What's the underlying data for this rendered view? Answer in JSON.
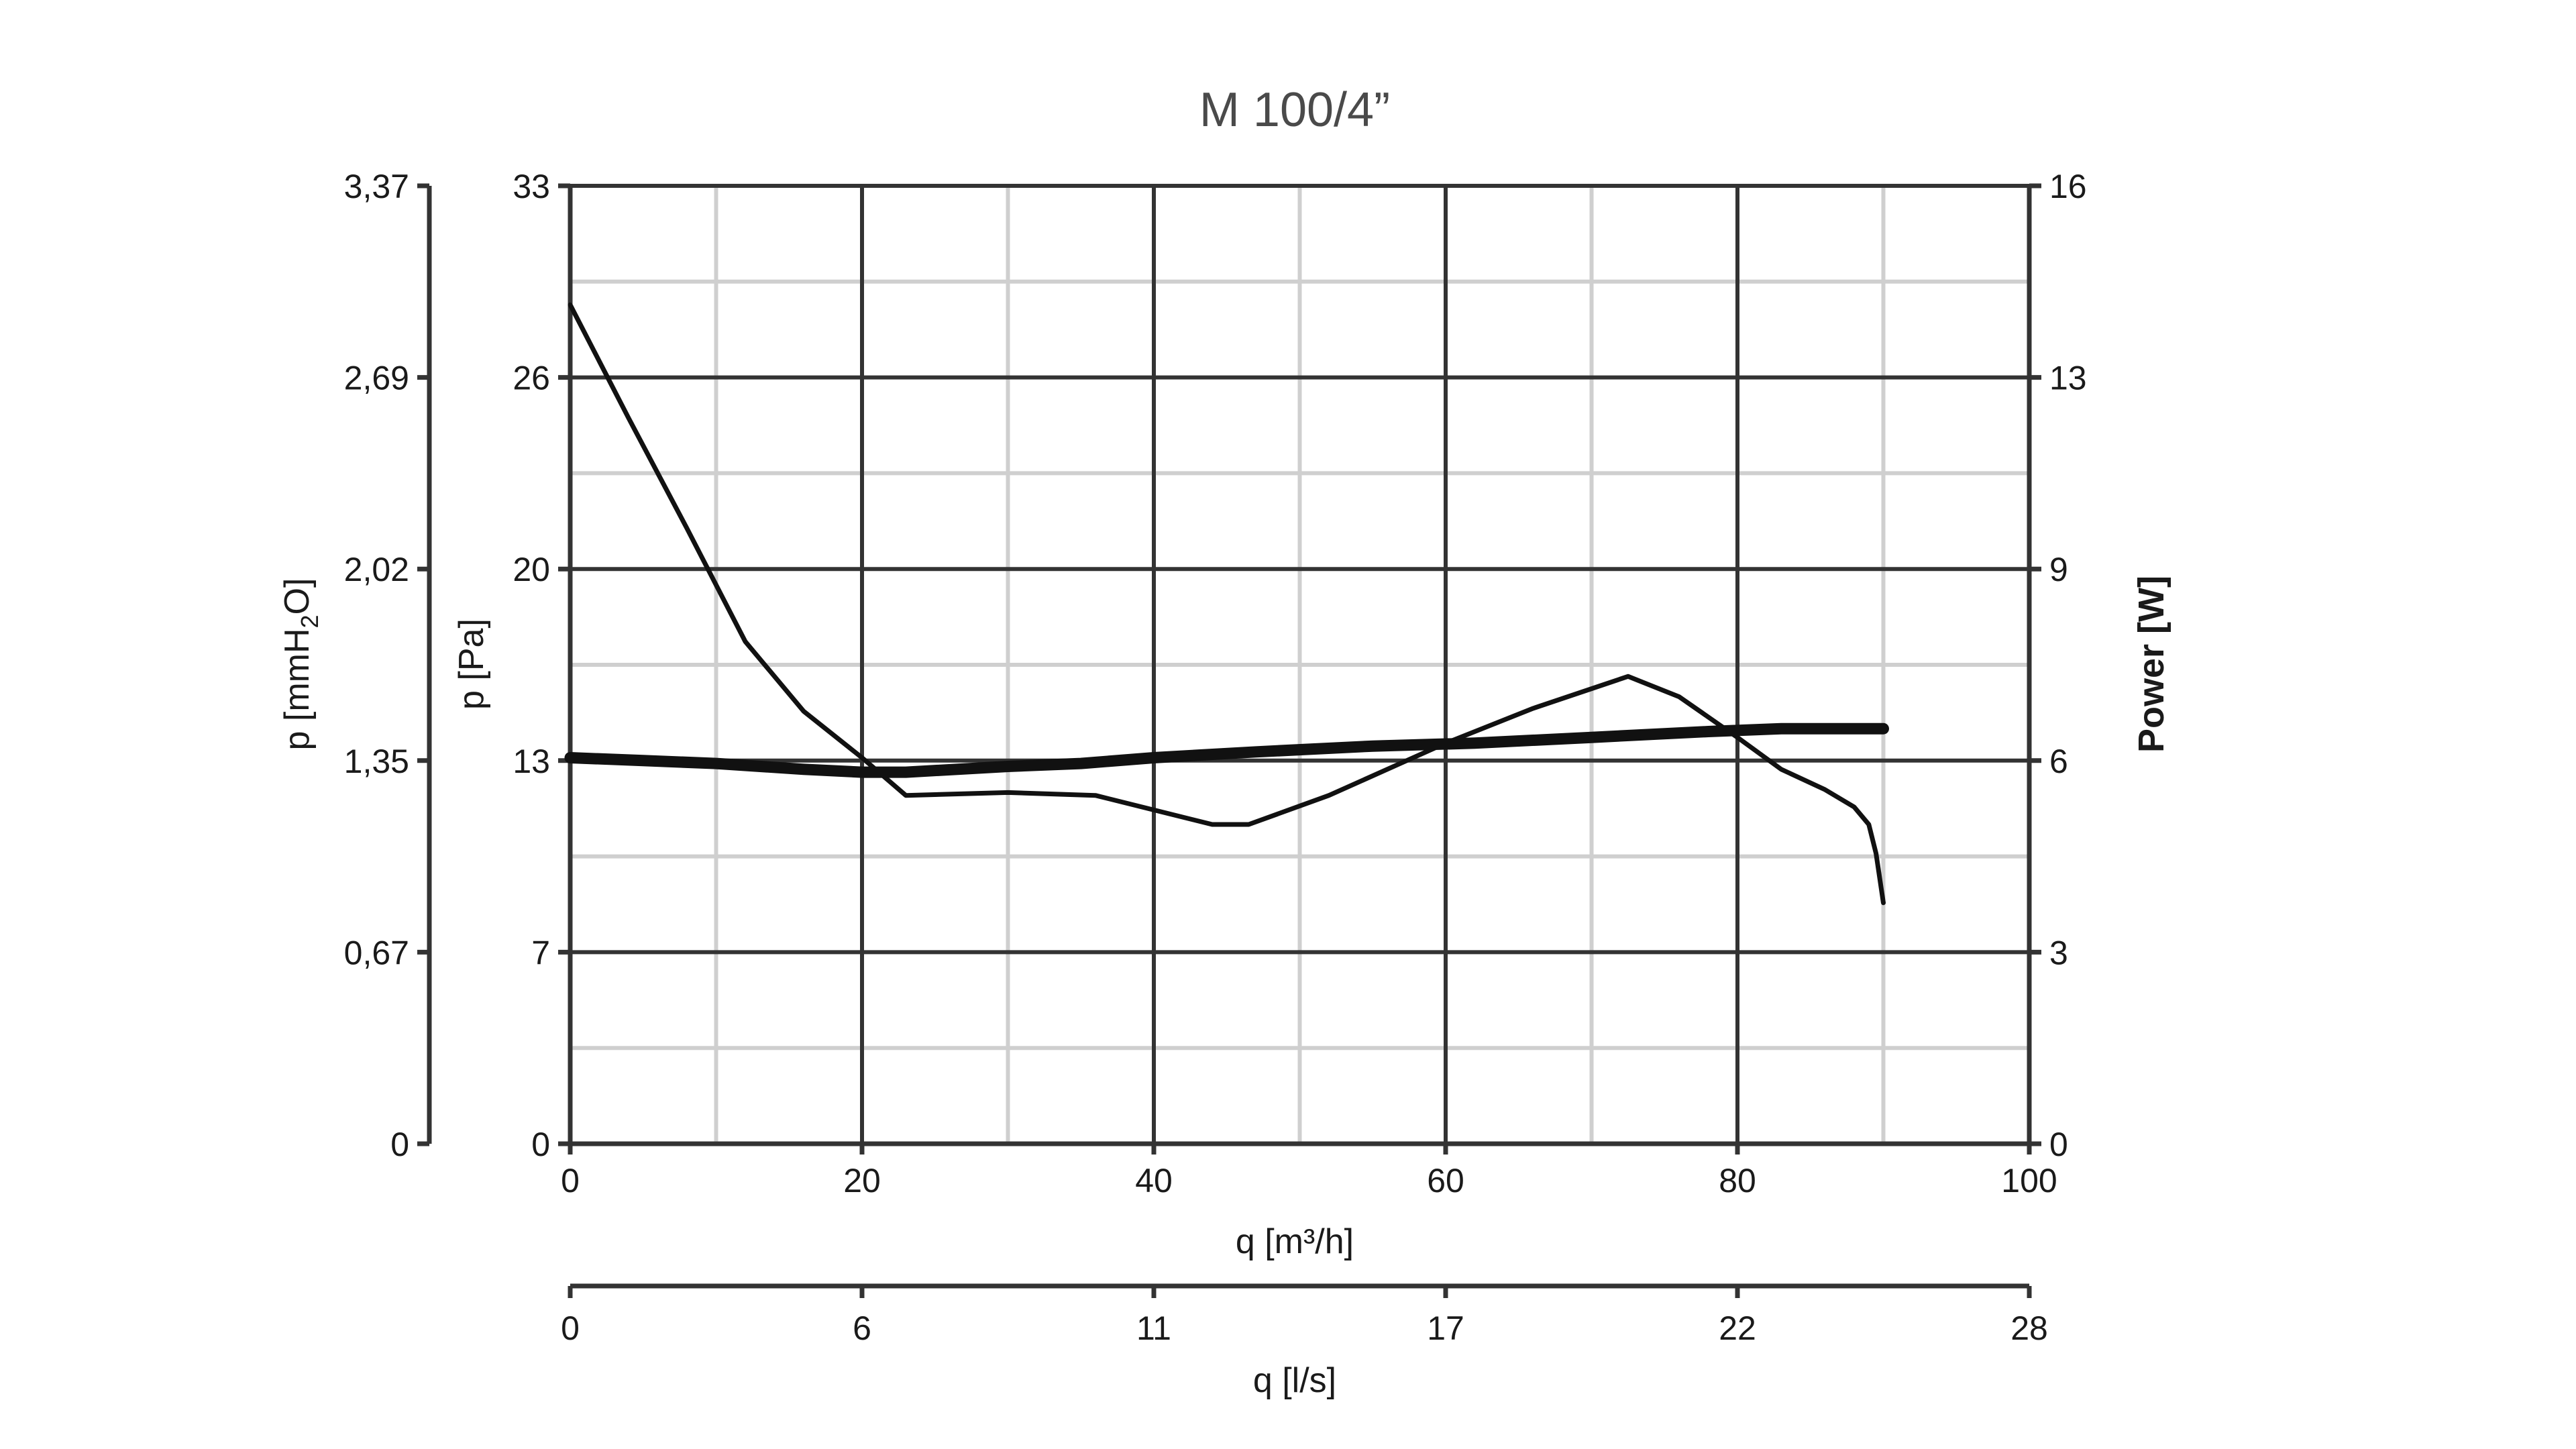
{
  "chart_data": {
    "type": "line",
    "title": "M 100/4”",
    "x_axis_primary": {
      "label": "q [m³/h]",
      "ticks": [
        "0",
        "20",
        "40",
        "60",
        "80",
        "100"
      ],
      "range": [
        0,
        100
      ]
    },
    "x_axis_secondary": {
      "label": "q [l/s]",
      "ticks": [
        "0",
        "6",
        "11",
        "17",
        "22",
        "28"
      ]
    },
    "y_axis_left_pa": {
      "label": "p [Pa]",
      "ticks": [
        "0",
        "7",
        "13",
        "20",
        "26",
        "33"
      ],
      "range": [
        0,
        33
      ]
    },
    "y_axis_left_mmh2o": {
      "label_main": "p [mmH",
      "label_sub": "2",
      "label_end": "O]",
      "ticks": [
        "0",
        "0,67",
        "1,35",
        "2,02",
        "2,69",
        "3,37"
      ]
    },
    "y_axis_right_power": {
      "label": "Power [W]",
      "ticks": [
        "0",
        "3",
        "6",
        "9",
        "13",
        "16"
      ]
    },
    "grid": true,
    "series": [
      {
        "role": "pressure",
        "style": "thin",
        "x": [
          0,
          4,
          8,
          12,
          16,
          20,
          23,
          30,
          36,
          40,
          44,
          46.5,
          52,
          60,
          66,
          72.5,
          76,
          80,
          83,
          86,
          88,
          89,
          89.5,
          90
        ],
        "y": [
          28.9,
          25,
          21.2,
          17.3,
          14.9,
          13.3,
          12.0,
          12.1,
          12.0,
          11.5,
          11.0,
          11.0,
          12.0,
          13.8,
          15.0,
          16.1,
          15.4,
          14.0,
          12.9,
          12.2,
          11.6,
          11.0,
          10.0,
          8.3
        ]
      },
      {
        "role": "power",
        "style": "thick",
        "x": [
          0,
          5,
          10,
          16,
          20,
          23,
          30,
          35,
          40,
          47,
          55,
          62,
          70,
          78,
          83,
          90
        ],
        "y": [
          13.3,
          13.2,
          13.1,
          12.9,
          12.8,
          12.8,
          13.0,
          13.1,
          13.3,
          13.5,
          13.7,
          13.8,
          14.0,
          14.2,
          14.3,
          14.3
        ]
      }
    ]
  }
}
